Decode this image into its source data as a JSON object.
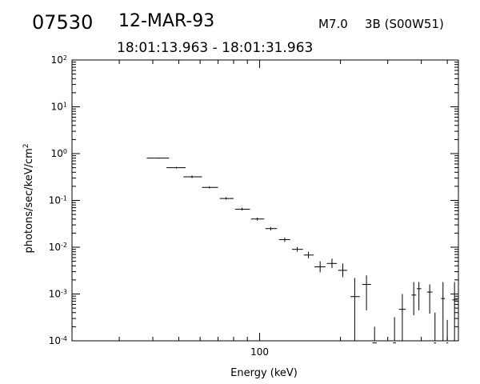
{
  "header": {
    "event_id": "07530",
    "date": "12-MAR-93",
    "flare_class": "M7.0",
    "location": "3B (S00W51)",
    "time_range": "18:01:13.963 - 18:01:31.963"
  },
  "chart_data": {
    "type": "scatter",
    "title": "",
    "xlabel": "Energy (keV)",
    "ylabel": "photons/sec/keV/cm",
    "ylabel_superscript": "2",
    "xscale": "log",
    "yscale": "log",
    "xlim": [
      20,
      550
    ],
    "ylim": [
      0.0001,
      100
    ],
    "x_tick_labels": [
      {
        "value": 100,
        "label": "100"
      }
    ],
    "y_tick_labels": [
      {
        "value": 100,
        "base": "10",
        "exp": "2"
      },
      {
        "value": 10,
        "base": "10",
        "exp": "1"
      },
      {
        "value": 1,
        "base": "10",
        "exp": "0"
      },
      {
        "value": 0.1,
        "base": "10",
        "exp": "-1"
      },
      {
        "value": 0.01,
        "base": "10",
        "exp": "-2"
      },
      {
        "value": 0.001,
        "base": "10",
        "exp": "-3"
      },
      {
        "value": 0.0001,
        "base": "10",
        "exp": "-4"
      }
    ],
    "grid": false,
    "series": [
      {
        "points": [
          {
            "x": 42,
            "x_lo": 38,
            "x_hi": 46,
            "y": 0.8,
            "y_lo": 0.78,
            "y_hi": 0.82
          },
          {
            "x": 49,
            "x_lo": 45,
            "x_hi": 53,
            "y": 0.5,
            "y_lo": 0.48,
            "y_hi": 0.52
          },
          {
            "x": 56,
            "x_lo": 52,
            "x_hi": 61,
            "y": 0.32,
            "y_lo": 0.3,
            "y_hi": 0.34
          },
          {
            "x": 65,
            "x_lo": 61,
            "x_hi": 70,
            "y": 0.19,
            "y_lo": 0.18,
            "y_hi": 0.2
          },
          {
            "x": 75,
            "x_lo": 71,
            "x_hi": 80,
            "y": 0.11,
            "y_lo": 0.104,
            "y_hi": 0.117
          },
          {
            "x": 86,
            "x_lo": 81,
            "x_hi": 92,
            "y": 0.065,
            "y_lo": 0.061,
            "y_hi": 0.07
          },
          {
            "x": 98,
            "x_lo": 93,
            "x_hi": 104,
            "y": 0.04,
            "y_lo": 0.037,
            "y_hi": 0.043
          },
          {
            "x": 110,
            "x_lo": 105,
            "x_hi": 116,
            "y": 0.025,
            "y_lo": 0.023,
            "y_hi": 0.027
          },
          {
            "x": 124,
            "x_lo": 118,
            "x_hi": 130,
            "y": 0.0145,
            "y_lo": 0.013,
            "y_hi": 0.016
          },
          {
            "x": 138,
            "x_lo": 132,
            "x_hi": 145,
            "y": 0.009,
            "y_lo": 0.008,
            "y_hi": 0.0101
          },
          {
            "x": 152,
            "x_lo": 146,
            "x_hi": 159,
            "y": 0.0068,
            "y_lo": 0.0058,
            "y_hi": 0.008
          },
          {
            "x": 168,
            "x_lo": 160,
            "x_hi": 176,
            "y": 0.0038,
            "y_lo": 0.0029,
            "y_hi": 0.005
          },
          {
            "x": 186,
            "x_lo": 178,
            "x_hi": 194,
            "y": 0.0045,
            "y_lo": 0.0036,
            "y_hi": 0.0057
          },
          {
            "x": 204,
            "x_lo": 196,
            "x_hi": 212,
            "y": 0.0032,
            "y_lo": 0.0023,
            "y_hi": 0.0045
          },
          {
            "x": 226,
            "x_lo": 218,
            "x_hi": 236,
            "y": 0.00088,
            "y_lo": 5e-05,
            "y_hi": 0.0022
          },
          {
            "x": 250,
            "x_lo": 241,
            "x_hi": 260,
            "y": 0.0016,
            "y_lo": 0.00045,
            "y_hi": 0.0025
          },
          {
            "x": 268,
            "x_lo": 263,
            "x_hi": 273,
            "y": 9e-05,
            "y_lo": 5e-05,
            "y_hi": 0.0002
          },
          {
            "x": 318,
            "x_lo": 314,
            "x_hi": 322,
            "y": 9e-05,
            "y_lo": 5e-05,
            "y_hi": 0.00032
          },
          {
            "x": 340,
            "x_lo": 330,
            "x_hi": 350,
            "y": 0.00047,
            "y_lo": 5e-05,
            "y_hi": 0.001
          },
          {
            "x": 375,
            "x_lo": 368,
            "x_hi": 383,
            "y": 0.00095,
            "y_lo": 0.00035,
            "y_hi": 0.0018
          },
          {
            "x": 392,
            "x_lo": 385,
            "x_hi": 400,
            "y": 0.0013,
            "y_lo": 0.00045,
            "y_hi": 0.0018
          },
          {
            "x": 430,
            "x_lo": 420,
            "x_hi": 440,
            "y": 0.0011,
            "y_lo": 0.00038,
            "y_hi": 0.0016
          },
          {
            "x": 450,
            "x_lo": 446,
            "x_hi": 454,
            "y": 9e-05,
            "y_lo": 5e-05,
            "y_hi": 0.0004
          },
          {
            "x": 482,
            "x_lo": 474,
            "x_hi": 490,
            "y": 0.0008,
            "y_lo": 5e-05,
            "y_hi": 0.0018
          },
          {
            "x": 500,
            "x_lo": 496,
            "x_hi": 504,
            "y": 9e-05,
            "y_lo": 5e-05,
            "y_hi": 0.00028
          },
          {
            "x": 532,
            "x_lo": 522,
            "x_hi": 546,
            "y": 0.00075,
            "y_lo": 5e-05,
            "y_hi": 0.0018
          }
        ]
      }
    ]
  }
}
